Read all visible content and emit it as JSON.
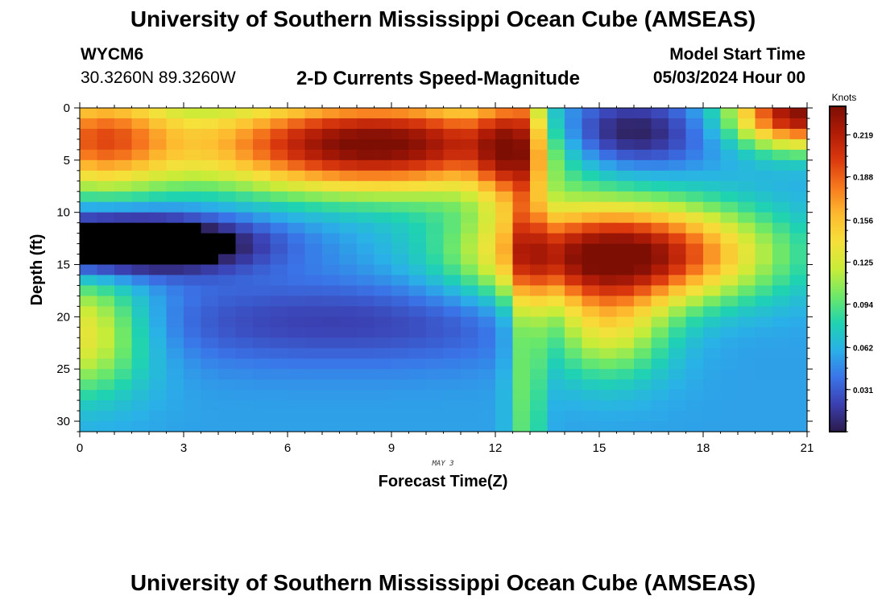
{
  "header": {
    "title": "University of Southern Mississippi Ocean Cube (AMSEAS)",
    "station_id": "WYCM6",
    "coords": "30.3260N  89.3260W",
    "subtitle": "2-D Currents Speed-Magnitude",
    "start_label": "Model Start Time",
    "start_value": "05/03/2024 Hour 00"
  },
  "footer": {
    "title": "University of Southern Mississippi Ocean Cube (AMSEAS)"
  },
  "chart_data": {
    "type": "heatmap",
    "title": "2-D Currents Speed-Magnitude",
    "xlabel": "Forecast Time(Z)",
    "ylabel": "Depth (ft)",
    "date_note": "MAY 3",
    "xlim": [
      0,
      21
    ],
    "ylim": [
      31,
      0
    ],
    "x_ticks": [
      "0",
      "3",
      "6",
      "9",
      "12",
      "15",
      "18",
      "21"
    ],
    "y_ticks": [
      "0",
      "5",
      "10",
      "15",
      "20",
      "25",
      "30"
    ],
    "colorbar": {
      "units": "Knots",
      "min": 0.0,
      "max": 0.24,
      "ticks": [
        "0.219",
        "0.188",
        "0.156",
        "0.125",
        "0.094",
        "0.062",
        "0.031"
      ]
    },
    "palette": [
      "#2b1a4a",
      "#3b3fb0",
      "#3a74e8",
      "#2ab0e8",
      "#1fd3b0",
      "#6ee868",
      "#c8ec38",
      "#f6e03a",
      "#fdbb2f",
      "#f77a1e",
      "#dc3a0e",
      "#b11c07",
      "#7d0e04"
    ],
    "features": [
      {
        "name": "upper-high-band",
        "t": 8.5,
        "d": 3.5,
        "st": 3.8,
        "sd": 3.2,
        "amp": 0.19
      },
      {
        "name": "upper-left-edge",
        "t": 0.5,
        "d": 3.0,
        "st": 1.6,
        "sd": 3.5,
        "amp": 0.12
      },
      {
        "name": "upper-right-edge",
        "t": 12.3,
        "d": 4.0,
        "st": 0.6,
        "sd": 4.0,
        "amp": 0.08
      },
      {
        "name": "left-minimum",
        "t": 1.2,
        "d": 13.0,
        "st": 2.6,
        "sd": 1.9,
        "amp": -0.12
      },
      {
        "name": "mid-low-band",
        "t": 7.5,
        "d": 20.5,
        "st": 5.0,
        "sd": 3.0,
        "amp": -0.035
      },
      {
        "name": "lower-left-high",
        "t": 0.0,
        "d": 21.5,
        "st": 1.4,
        "sd": 4.0,
        "amp": 0.09
      },
      {
        "name": "vertical-strip",
        "t": 12.9,
        "d": 15.0,
        "st": 0.35,
        "sd": 30.0,
        "amp": 0.05
      },
      {
        "name": "right-high-core",
        "t": 15.5,
        "d": 14.0,
        "st": 2.8,
        "sd": 3.3,
        "amp": 0.19
      },
      {
        "name": "right-high-tail",
        "t": 15.2,
        "d": 21.0,
        "st": 1.3,
        "sd": 3.5,
        "amp": 0.08
      },
      {
        "name": "top-right-minimum",
        "t": 15.5,
        "d": 2.5,
        "st": 1.8,
        "sd": 2.5,
        "amp": -0.08
      },
      {
        "name": "top-right-corner-high",
        "t": 20.8,
        "d": 0.5,
        "st": 1.4,
        "sd": 2.3,
        "amp": 0.18
      }
    ],
    "base_speed": 0.055,
    "min_cell": {
      "t": 1.0,
      "d": 13.0,
      "value": 0.0
    }
  }
}
